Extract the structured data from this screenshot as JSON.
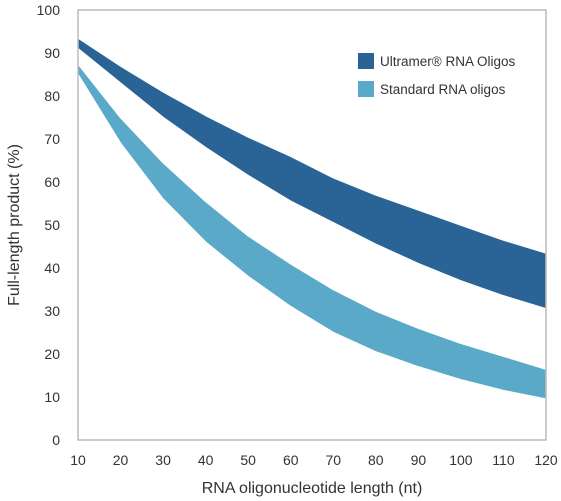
{
  "chart_data": {
    "type": "area",
    "title": "",
    "xlabel": "RNA oligonucleotide length (nt)",
    "ylabel": "Full-length product (%)",
    "xlim": [
      10,
      120
    ],
    "ylim": [
      0,
      100
    ],
    "x_ticks": [
      "10",
      "20",
      "30",
      "40",
      "50",
      "60",
      "70",
      "80",
      "90",
      "100",
      "110",
      "120"
    ],
    "y_ticks": [
      "0",
      "10",
      "20",
      "30",
      "40",
      "50",
      "60",
      "70",
      "80",
      "90",
      "100"
    ],
    "grid": false,
    "legend_position": "top-right",
    "x": [
      10,
      20,
      30,
      40,
      50,
      60,
      70,
      80,
      90,
      100,
      110,
      120
    ],
    "series": [
      {
        "name": "Ultramer® RNA Oligos",
        "color": "#2a6496",
        "upper": [
          93.5,
          87,
          81,
          75.5,
          70.5,
          66,
          61,
          57,
          53.5,
          50,
          46.5,
          43.5
        ],
        "lower": [
          91,
          83,
          75,
          68,
          61.5,
          55.5,
          50.5,
          45.5,
          41,
          37,
          33.5,
          30.5
        ]
      },
      {
        "name": "Standard RNA oligos",
        "color": "#5ba9c9",
        "upper": [
          87.5,
          75,
          64.5,
          55.5,
          47.5,
          41,
          35,
          30,
          26,
          22.5,
          19.5,
          16.5
        ],
        "lower": [
          85,
          69,
          56,
          46,
          38,
          31,
          25,
          20.5,
          17,
          14,
          11.5,
          9.5
        ]
      }
    ]
  }
}
